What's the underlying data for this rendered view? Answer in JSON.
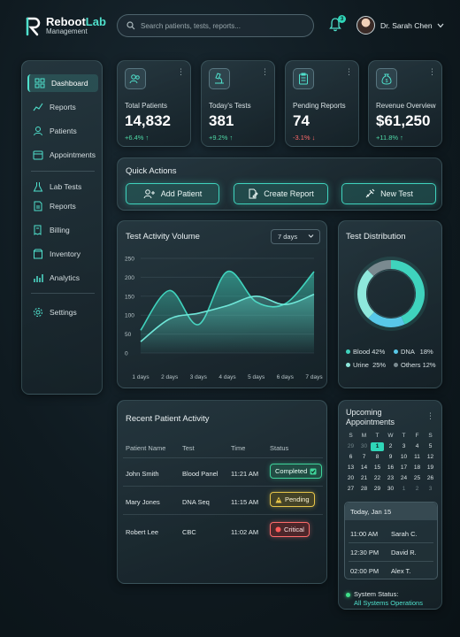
{
  "brand": {
    "name_part1": "Reboot",
    "name_part2": "Lab",
    "subtitle": "Management",
    "accent_color": "#4fe0cc"
  },
  "header": {
    "search_placeholder": "Search patients, tests, reports...",
    "notification_count": "3",
    "user_name": "Dr. Sarah Chen"
  },
  "sidebar": {
    "items": [
      {
        "label": "Dashboard",
        "icon": "grid-icon",
        "active": true
      },
      {
        "label": "Reports",
        "icon": "chart-line-icon"
      },
      {
        "label": "Patients",
        "icon": "user-icon"
      },
      {
        "label": "Appointments",
        "icon": "calendar-icon"
      },
      {
        "label": "Lab Tests",
        "icon": "flask-icon"
      },
      {
        "label": "Reports",
        "icon": "document-icon"
      },
      {
        "label": "Billing",
        "icon": "billing-icon"
      },
      {
        "label": "Inventory",
        "icon": "box-icon"
      },
      {
        "label": "Analytics",
        "icon": "bars-icon"
      },
      {
        "label": "Settings",
        "icon": "gear-icon"
      }
    ]
  },
  "stats": [
    {
      "label": "Total Patients",
      "value": "14,832",
      "delta": "+6.4% ↑",
      "trend": "up",
      "icon": "patients-icon"
    },
    {
      "label": "Today's Tests",
      "value": "381",
      "delta": "+9.2% ↑",
      "trend": "up",
      "icon": "microscope-icon"
    },
    {
      "label": "Pending Reports",
      "value": "74",
      "delta": "-3.1% ↓",
      "trend": "down",
      "icon": "clipboard-icon"
    },
    {
      "label": "Revenue Overview",
      "value": "$61,250",
      "delta": "+11.8% ↑",
      "trend": "up",
      "icon": "money-bag-icon"
    }
  ],
  "quick_actions": {
    "title": "Quick Actions",
    "buttons": [
      {
        "label": "Add Patient",
        "icon": "add-user-icon"
      },
      {
        "label": "Create Report",
        "icon": "document-edit-icon"
      },
      {
        "label": "New Test",
        "icon": "syringe-icon"
      }
    ]
  },
  "activity_chart": {
    "title": "Test Activity Volume",
    "range_selected": "7 days"
  },
  "chart_data": [
    {
      "type": "area",
      "title": "Test Activity Volume",
      "categories": [
        "1 days",
        "2 days",
        "3 days",
        "4 days",
        "5 days",
        "6 days",
        "7 days"
      ],
      "y_ticks": [
        "250",
        "200",
        "150",
        "100",
        "50",
        "0"
      ],
      "ylim": [
        0,
        250
      ],
      "series": [
        {
          "values": [
            60,
            165,
            75,
            215,
            135,
            130,
            215
          ],
          "color": "#3fd3bd"
        },
        {
          "values": [
            30,
            90,
            105,
            125,
            150,
            128,
            155
          ],
          "color": "#6fe6d8"
        }
      ]
    },
    {
      "type": "pie",
      "title": "Test Distribution",
      "slices": [
        {
          "label": "Blood",
          "value": 42,
          "display": "Blood 42%",
          "color": "#3fd3bd"
        },
        {
          "label": "DNA",
          "value": 18,
          "display": "DNA   18%",
          "color": "#58c8e8"
        },
        {
          "label": "Urine",
          "value": 25,
          "display": "Urine  25%",
          "color": "#8ee8dc"
        },
        {
          "label": "Others",
          "value": 12,
          "display": "Others 12%",
          "color": "#7a8a90"
        }
      ]
    }
  ],
  "recent_activity": {
    "title": "Recent Patient Activity",
    "columns": [
      "Patient Name",
      "Test",
      "Time",
      "Status"
    ],
    "rows": [
      {
        "patient": "John Smith",
        "test": "Blood Panel",
        "time": "11:21 AM",
        "status": "Completed",
        "status_icon": "check-icon",
        "status_type": "completed"
      },
      {
        "patient": "Mary Jones",
        "test": "DNA Seq",
        "time": "11:15 AM",
        "status": "Pending",
        "status_icon": "warning-icon",
        "status_type": "pending"
      },
      {
        "patient": "Robert Lee",
        "test": "CBC",
        "time": "11:02 AM",
        "status": "Critical",
        "status_icon": "alert-dot-icon",
        "status_type": "critical"
      }
    ]
  },
  "appointments": {
    "title": "Upcoming Appointments",
    "calendar": {
      "weekdays": [
        "S",
        "M",
        "T",
        "W",
        "T",
        "F",
        "S"
      ],
      "weeks": [
        [
          "29",
          "30",
          "1",
          "2",
          "3",
          "4",
          "5"
        ],
        [
          "6",
          "7",
          "8",
          "9",
          "10",
          "11",
          "12"
        ],
        [
          "13",
          "14",
          "15",
          "16",
          "17",
          "18",
          "19"
        ],
        [
          "20",
          "21",
          "22",
          "23",
          "24",
          "25",
          "26"
        ],
        [
          "27",
          "28",
          "29",
          "30",
          "1",
          "2",
          "3"
        ]
      ],
      "today": "1"
    },
    "day_label": "Today, Jan 15",
    "slots": [
      {
        "time": "11:00 AM",
        "name": "Sarah C."
      },
      {
        "time": "12:30 PM",
        "name": "David R."
      },
      {
        "time": "02:00 PM",
        "name": "Alex T."
      }
    ],
    "system_status_label": "System Status:",
    "system_status_value": "All Systems Operations"
  }
}
